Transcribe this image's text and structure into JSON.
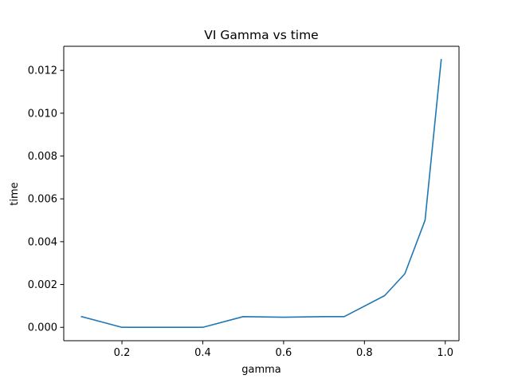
{
  "chart_data": {
    "type": "line",
    "title": "VI Gamma vs time",
    "xlabel": "gamma",
    "ylabel": "time",
    "xlim": [
      0.056,
      1.034
    ],
    "ylim": [
      -0.000625,
      0.013125
    ],
    "xticks": [
      0.2,
      0.4,
      0.6,
      0.8,
      1.0
    ],
    "xtick_labels": [
      "0.2",
      "0.4",
      "0.6",
      "0.8",
      "1.0"
    ],
    "yticks": [
      0.0,
      0.002,
      0.004,
      0.006,
      0.008,
      0.01,
      0.012
    ],
    "ytick_labels": [
      "0.000",
      "0.002",
      "0.004",
      "0.006",
      "0.008",
      "0.010",
      "0.012"
    ],
    "grid": false,
    "series": [
      {
        "color": "#1f77b4",
        "x": [
          0.1,
          0.2,
          0.3,
          0.4,
          0.5,
          0.6,
          0.7,
          0.75,
          0.85,
          0.9,
          0.95,
          0.99
        ],
        "y": [
          0.0005,
          0.0,
          0.0,
          0.0,
          0.0005,
          0.00047,
          0.0005,
          0.0005,
          0.00148,
          0.0025,
          0.005,
          0.0125
        ]
      }
    ]
  }
}
